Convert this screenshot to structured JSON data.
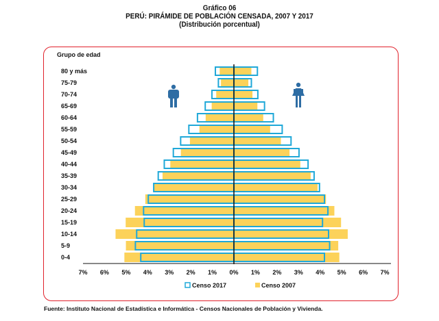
{
  "chart_data": {
    "type": "bar",
    "subtype": "population-pyramid",
    "title_lines": [
      "Gráfico 06",
      "PERÚ: PIRÁMIDE DE POBLACIÓN CENSADA, 2007 Y 2017",
      "(Distribución porcentual)"
    ],
    "ylabel": "Grupo de edad",
    "categories": [
      "80 y más",
      "75-79",
      "70-74",
      "65-69",
      "60-64",
      "55-59",
      "50-54",
      "45-49",
      "40-44",
      "35-39",
      "30-34",
      "25-29",
      "20-24",
      "15-19",
      "10-14",
      "5-9",
      "0-4"
    ],
    "xlim": [
      -7,
      7
    ],
    "xticks": [
      "7%",
      "6%",
      "5%",
      "4%",
      "3%",
      "2%",
      "1%",
      "0%",
      "1%",
      "2%",
      "3%",
      "4%",
      "5%",
      "6%",
      "7%"
    ],
    "left_side": "Hombres",
    "right_side": "Mujeres",
    "series": [
      {
        "name": "Censo 2017",
        "style": "outline",
        "color": "#1fa8d8",
        "male": [
          0.86,
          0.72,
          1.02,
          1.33,
          1.69,
          2.09,
          2.47,
          2.81,
          3.23,
          3.51,
          3.72,
          3.97,
          4.19,
          4.16,
          4.51,
          4.57,
          4.32
        ],
        "female": [
          1.09,
          0.81,
          1.11,
          1.42,
          1.83,
          2.24,
          2.65,
          3.02,
          3.44,
          3.72,
          3.97,
          4.2,
          4.36,
          4.11,
          4.39,
          4.44,
          4.2
        ]
      },
      {
        "name": "Censo 2007",
        "style": "fill",
        "color": "#fcd25a",
        "male": [
          0.66,
          0.6,
          0.82,
          1.03,
          1.31,
          1.6,
          2.04,
          2.46,
          2.95,
          3.31,
          3.7,
          4.11,
          4.59,
          5.02,
          5.49,
          5.01,
          5.08
        ],
        "female": [
          0.81,
          0.67,
          0.86,
          1.09,
          1.36,
          1.68,
          2.18,
          2.58,
          3.08,
          3.56,
          3.88,
          4.27,
          4.66,
          4.97,
          5.28,
          4.84,
          4.89
        ]
      }
    ],
    "legend": [
      "Censo 2017",
      "Censo 2007"
    ],
    "legend_position": "bottom",
    "source": "Fuente: Instituto Nacional de Estadística e Informática - Censos Nacionales de Población y Vivienda."
  },
  "colors": {
    "border": "#e0202a",
    "icon": "#2e6da4",
    "axis": "#111111"
  }
}
